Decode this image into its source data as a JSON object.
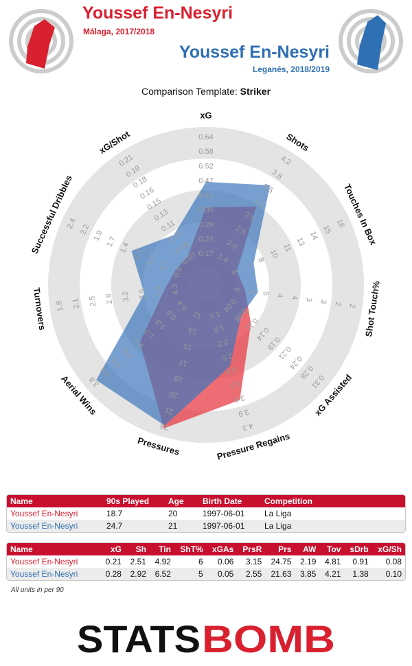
{
  "header": {
    "player1": {
      "name": "Youssef En-Nesyri",
      "subtitle": "Málaga, 2017/2018",
      "color": "#d9202f"
    },
    "player2": {
      "name": "Youssef En-Nesyri",
      "subtitle": "Leganés, 2018/2019",
      "color": "#2f6fb3"
    },
    "template_prefix": "Comparison Template:",
    "template_name": "Striker"
  },
  "chart_data": {
    "type": "radar",
    "axes": [
      {
        "label": "xG",
        "ticks": [
          "0.17",
          "0.24",
          "0.29",
          "0.35",
          "0.41",
          "0.47",
          "0.52",
          "0.58",
          "0.64"
        ]
      },
      {
        "label": "Shots",
        "ticks": [
          "1.4",
          "2.0",
          "2.5",
          "2.8",
          "3.2",
          "3.5",
          "3.8",
          "4.2"
        ]
      },
      {
        "label": "Touches In Box",
        "ticks": [
          "5",
          "7",
          "8",
          "10",
          "11",
          "13",
          "14",
          "15",
          "16"
        ]
      },
      {
        "label": "Shot Touch%",
        "ticks": [
          "6",
          "5",
          "5",
          "4",
          "4",
          "3",
          "3",
          "2",
          "2"
        ]
      },
      {
        "label": "xG Assisted",
        "ticks": [
          "0.04",
          "0.08",
          "0.11",
          "0.14",
          "0.18",
          "0.21",
          "0.24",
          "0.28",
          "0.31"
        ]
      },
      {
        "label": "Pressure Regains",
        "ticks": [
          "1.5",
          "1.8",
          "2.2",
          "2.5",
          "2.9",
          "3.2",
          "3.6",
          "3.9",
          "4.3"
        ]
      },
      {
        "label": "Pressures",
        "ticks": [
          "12",
          "13",
          "15",
          "17",
          "19",
          "20",
          "21",
          "23"
        ]
      },
      {
        "label": "Aerial Wins",
        "ticks": [
          "0.4",
          "0.9",
          "1.3",
          "1.7",
          "2.1",
          "2.5",
          "3.0",
          "3.4",
          "3.8"
        ]
      },
      {
        "label": "Turnovers",
        "ticks": [
          "4.3",
          "3.9",
          "3.6",
          "3.2",
          "2.8",
          "2.5",
          "2.1",
          "1.8"
        ]
      },
      {
        "label": "Successful Dribbles",
        "ticks": [
          "0.5",
          "0.7",
          "1.0",
          "1.2",
          "1.4",
          "1.7",
          "1.9",
          "2.2",
          "2.4"
        ]
      },
      {
        "label": "xG/Shot",
        "ticks": [
          "0.07",
          "0.09",
          "0.10",
          "0.11",
          "0.13",
          "0.15",
          "0.16",
          "0.18",
          "0.19",
          "0.21"
        ]
      }
    ],
    "series": [
      {
        "name": "Youssef En-Nesyri",
        "color": "#e8353f",
        "values": [
          0.21,
          2.51,
          4.92,
          6,
          0.06,
          3.15,
          24.75,
          2.19,
          4.81,
          0.91,
          0.08
        ]
      },
      {
        "name": "Youssef En-Nesyri",
        "color": "#3d78bd",
        "values": [
          0.28,
          2.92,
          6.52,
          5,
          0.05,
          2.55,
          21.63,
          3.85,
          4.21,
          1.38,
          0.1
        ]
      }
    ],
    "fractions": [
      [
        0.43,
        0.54,
        0.12,
        0.16,
        0.3,
        0.73,
        0.94,
        0.5,
        0.18,
        0.12,
        0.12
      ],
      [
        0.61,
        0.72,
        0.25,
        0.25,
        0.21,
        0.48,
        0.92,
        0.91,
        0.32,
        0.46,
        0.3
      ]
    ]
  },
  "table1": {
    "headers": [
      "Name",
      "90s Played",
      "Age",
      "Birth Date",
      "Competition"
    ],
    "rows": [
      [
        "Youssef En-Nesyri",
        "18.7",
        "20",
        "1997-06-01",
        "La Liga"
      ],
      [
        "Youssef En-Nesyri",
        "24.7",
        "21",
        "1997-06-01",
        "La Liga"
      ]
    ]
  },
  "table2": {
    "headers": [
      "Name",
      "xG",
      "Sh",
      "Tin",
      "ShT%",
      "xGAs",
      "PrsR",
      "Prs",
      "AW",
      "Tov",
      "sDrb",
      "xG/Sh"
    ],
    "rows": [
      [
        "Youssef En-Nesyri",
        "0.21",
        "2.51",
        "4.92",
        "6",
        "0.06",
        "3.15",
        "24.75",
        "2.19",
        "4.81",
        "0.91",
        "0.08"
      ],
      [
        "Youssef En-Nesyri",
        "0.28",
        "2.92",
        "6.52",
        "5",
        "0.05",
        "2.55",
        "21.63",
        "3.85",
        "4.21",
        "1.38",
        "0.10"
      ]
    ]
  },
  "units_note": "All units in per 90",
  "logo": {
    "part1": "STATS",
    "part2": "BOMB",
    "color1": "#111111",
    "color2": "#d9202f"
  },
  "colors": {
    "red": "#d9202f",
    "blue": "#2f6fb3",
    "table_header": "#c8102e"
  }
}
